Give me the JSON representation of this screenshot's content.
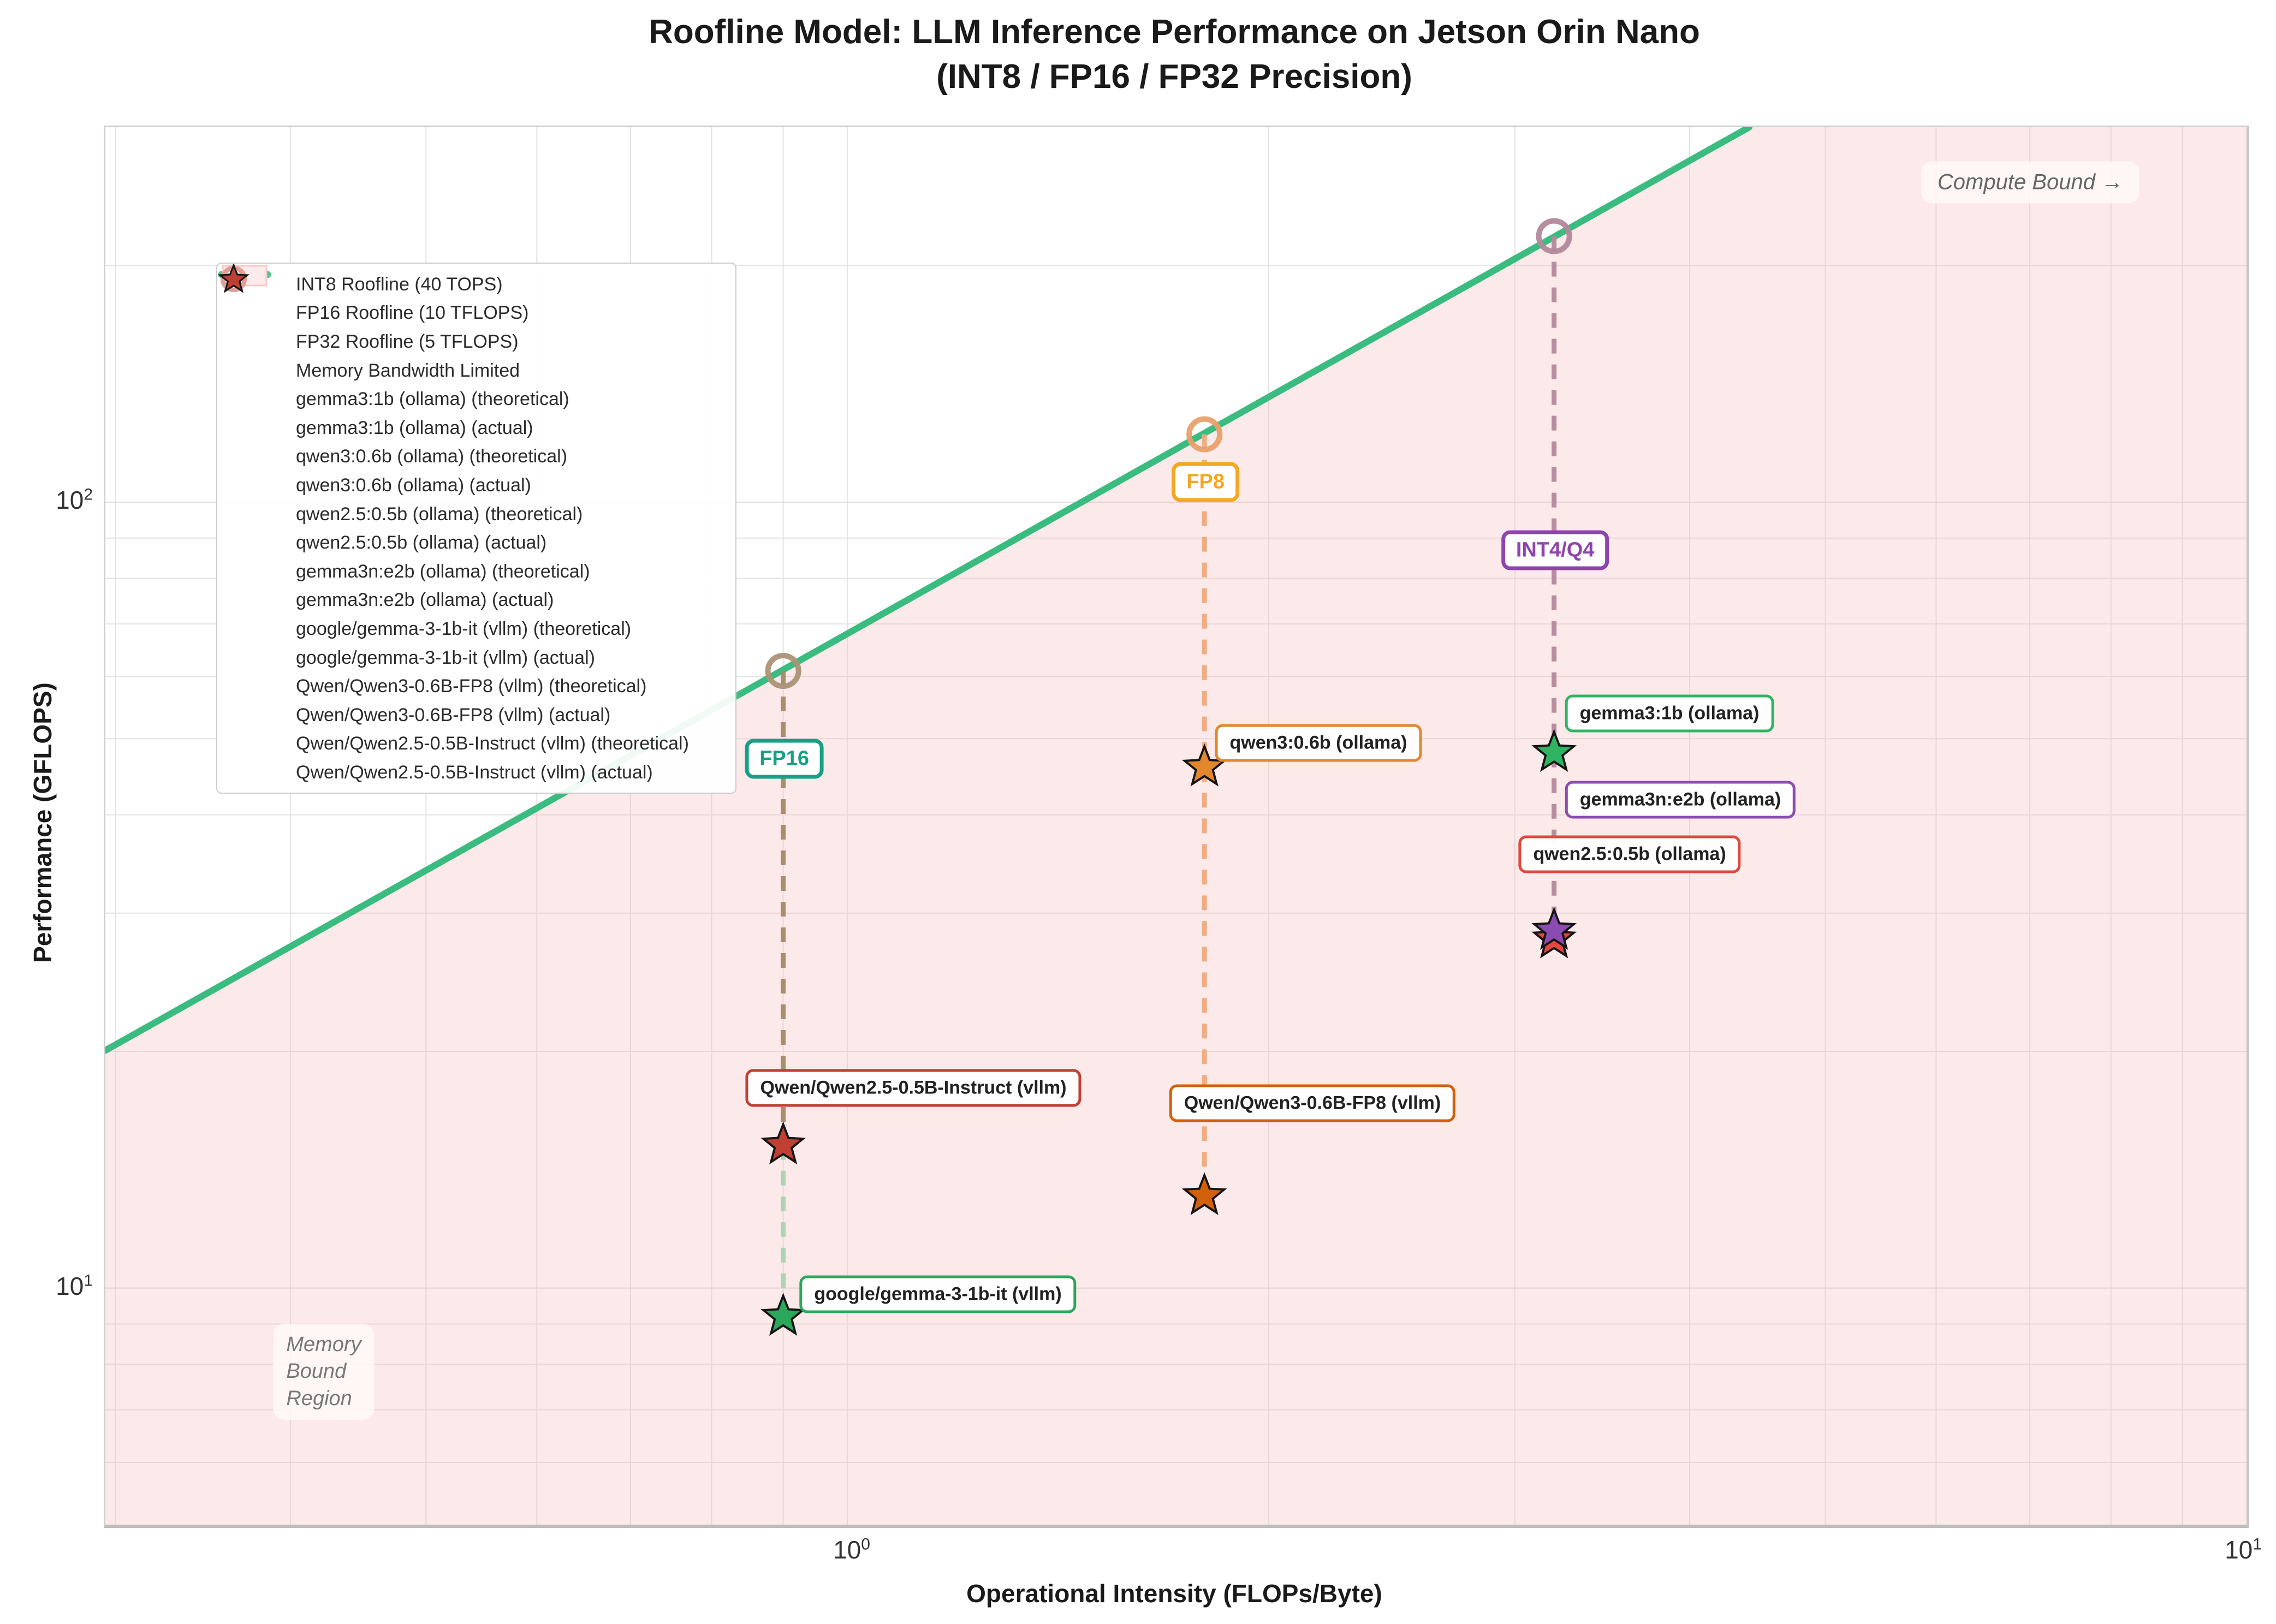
{
  "title": {
    "line1": "Roofline Model: LLM Inference Performance on Jetson Orin Nano",
    "line2": "(INT8 / FP16 / FP32 Precision)"
  },
  "axes": {
    "x": {
      "label": "Operational Intensity (FLOPs/Byte)",
      "scale": "log",
      "min": 0.295,
      "max": 10,
      "ticks": [
        {
          "base": "10",
          "exp": "0",
          "value": 1
        },
        {
          "base": "10",
          "exp": "1",
          "value": 10
        }
      ]
    },
    "y": {
      "label": "Performance (GFLOPS)",
      "scale": "log",
      "min": 5,
      "max": 300,
      "ticks": [
        {
          "base": "10",
          "exp": "1",
          "value": 10
        },
        {
          "base": "10",
          "exp": "2",
          "value": 100
        }
      ]
    }
  },
  "annotations": {
    "compute_bound": "Compute Bound →",
    "memory_bound": "Memory\nBound\nRegion"
  },
  "legend": {
    "entries": [
      {
        "type": "line",
        "color": "#e0675f",
        "label": "INT8 Roofline (40 TOPS)"
      },
      {
        "type": "line",
        "color": "#569fd5",
        "label": "FP16 Roofline (10 TFLOPS)"
      },
      {
        "type": "line",
        "color": "#55c58b",
        "label": "FP32 Roofline (5 TFLOPS)"
      },
      {
        "type": "patch",
        "color": "#fdeaea",
        "border": "#f5c9c9",
        "label": "Memory Bandwidth Limited"
      },
      {
        "type": "circle",
        "color": "#96d7ab",
        "label": "gemma3:1b (ollama) (theoretical)"
      },
      {
        "type": "star",
        "color": "#2db562",
        "label": "gemma3:1b (ollama) (actual)"
      },
      {
        "type": "circle",
        "color": "#f2c490",
        "label": "qwen3:0.6b (ollama) (theoretical)"
      },
      {
        "type": "star",
        "color": "#e3872c",
        "label": "qwen3:0.6b (ollama) (actual)"
      },
      {
        "type": "circle",
        "color": "#eda9a0",
        "label": "qwen2.5:0.5b (ollama) (theoretical)"
      },
      {
        "type": "star",
        "color": "#e2463c",
        "label": "qwen2.5:0.5b (ollama) (actual)"
      },
      {
        "type": "circle",
        "color": "#c9aede",
        "label": "gemma3n:e2b (ollama) (theoretical)"
      },
      {
        "type": "star",
        "color": "#8c4bb0",
        "label": "gemma3n:e2b (ollama) (actual)"
      },
      {
        "type": "circle",
        "color": "#a5d9b4",
        "label": "google/gemma-3-1b-it (vllm) (theoretical)"
      },
      {
        "type": "star",
        "color": "#2aa85c",
        "label": "google/gemma-3-1b-it (vllm) (actual)"
      },
      {
        "type": "circle",
        "color": "#eec193",
        "label": "Qwen/Qwen3-0.6B-FP8 (vllm) (theoretical)"
      },
      {
        "type": "star",
        "color": "#d2600a",
        "label": "Qwen/Qwen3-0.6B-FP8 (vllm) (actual)"
      },
      {
        "type": "circle",
        "color": "#dfa09a",
        "label": "Qwen/Qwen2.5-0.5B-Instruct (vllm) (theoretical)"
      },
      {
        "type": "star",
        "color": "#c03f35",
        "label": "Qwen/Qwen2.5-0.5B-Instruct (vllm) (actual)"
      }
    ]
  },
  "chart_data": {
    "type": "scatter",
    "title": "Roofline Model: LLM Inference Performance on Jetson Orin Nano (INT8 / FP16 / FP32 Precision)",
    "xlabel": "Operational Intensity (FLOPs/Byte)",
    "ylabel": "Performance (GFLOPS)",
    "xlim": [
      0.295,
      10
    ],
    "ylim": [
      5,
      300
    ],
    "grid": true,
    "legend_position": "upper left",
    "memory_bandwidth_implied_gb_s": 68,
    "roofline_color": "#3abc80",
    "memory_region_fill": "rgba(246,188,188,0.33)",
    "rooflines": [
      {
        "name": "INT8 Roofline",
        "peak": "40 TOPS"
      },
      {
        "name": "FP16 Roofline",
        "peak": "10 TFLOPS"
      },
      {
        "name": "FP32 Roofline",
        "peak": "5 TFLOPS"
      }
    ],
    "precision_markers": [
      {
        "id": "fp16",
        "label": "FP16",
        "oi": 0.9,
        "color": "#16a085"
      },
      {
        "id": "fp8",
        "label": "FP8",
        "oi": 1.8,
        "color": "#f5a623"
      },
      {
        "id": "int4",
        "label": "INT4/Q4",
        "oi": 3.2,
        "color": "#8e44ad"
      }
    ],
    "models": [
      {
        "name": "gemma3:1b (ollama)",
        "column": "int4",
        "oi": 3.2,
        "theoretical_gflops": 218,
        "actual_gflops": 48,
        "theo_color": "#96d7ab",
        "actual_color": "#2db562"
      },
      {
        "name": "qwen3:0.6b (ollama)",
        "column": "fp8",
        "oi": 1.8,
        "theoretical_gflops": 122,
        "actual_gflops": 46,
        "theo_color": "#f2c490",
        "actual_color": "#e3872c"
      },
      {
        "name": "qwen2.5:0.5b (ollama)",
        "column": "int4",
        "oi": 3.2,
        "theoretical_gflops": 218,
        "actual_gflops": 27.8,
        "theo_color": "#eda9a0",
        "actual_color": "#e2463c"
      },
      {
        "name": "gemma3n:e2b (ollama)",
        "column": "int4",
        "oi": 3.2,
        "theoretical_gflops": 218,
        "actual_gflops": 28.5,
        "theo_color": "#c9aede",
        "actual_color": "#8c4bb0"
      },
      {
        "name": "google/gemma-3-1b-it (vllm)",
        "column": "fp16",
        "oi": 0.9,
        "theoretical_gflops": 61,
        "actual_gflops": 9.2,
        "theo_color": "#a5d9b4",
        "actual_color": "#2aa85c"
      },
      {
        "name": "Qwen/Qwen3-0.6B-FP8 (vllm)",
        "column": "fp8",
        "oi": 1.8,
        "theoretical_gflops": 122,
        "actual_gflops": 13.1,
        "theo_color": "#eec193",
        "actual_color": "#d2600a"
      },
      {
        "name": "Qwen/Qwen2.5-0.5B-Instruct (vllm)",
        "column": "fp16",
        "oi": 0.9,
        "theoretical_gflops": 61,
        "actual_gflops": 15.2,
        "theo_color": "#dfa09a",
        "actual_color": "#c03f35"
      }
    ]
  }
}
